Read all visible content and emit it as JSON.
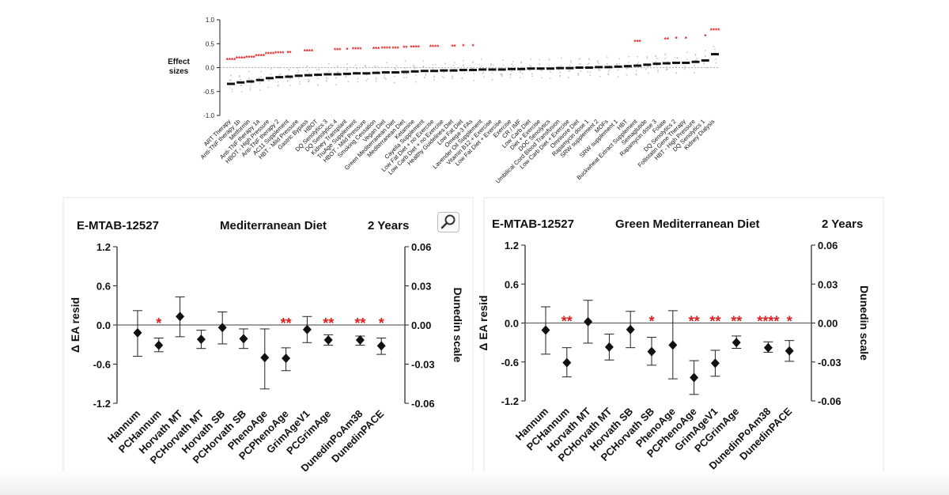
{
  "chart_data": [
    {
      "type": "scatter",
      "title": "",
      "ylabel": "Effect sizes",
      "ylim": [
        -1.0,
        1.0
      ],
      "yticks": [
        "1.0",
        "0.5",
        "0.0",
        "-0.5",
        "-1.0"
      ],
      "categories": [
        "ART Therapy",
        "Anti-TNF therapy 1b",
        "Metformin",
        "Anti-TNF therapy 1a",
        "HBOT - High Pressure",
        "Anti-TNF therapy 2",
        "AC11 Supplement",
        "HBT - Mild Pressure",
        "Gastric Bypass",
        "HBOT",
        "DQ Senolytics 3",
        "DQ Senolytics 4",
        "Kidney Transplant",
        "TruAge Supplement",
        "HBOT - Mild Pressure",
        "Smoking Cessation",
        "Vegan Diet",
        "Green Mediterranean Diet",
        "Mediterranean Diet",
        "Ketamine",
        "Cayella Supplement",
        "Low Fat Diet + no Exercise",
        "Low Carb Diet + no Exercise",
        "Healthy Guidelines Diet",
        "Low Fat Diet",
        "Omega-3 FAs",
        "Lavender Oil Supplement",
        "Vitamin B12 + Exercise",
        "Low Fat Diet + Exercise",
        "Exercise",
        "CR / IMF",
        "Low Carb Diet",
        "Diet + Exercise",
        "DOC Senolytics",
        "Umbilical Cord Blood Transfusion",
        "Low Carb Diet + Exercise",
        "Omnivore Diet",
        "Rapamycin dose 1",
        "SRW supplement 2",
        "MOFs",
        "SRW supplement 1",
        "HBT",
        "Buckwheat Extract Supplement",
        "Semaglutide",
        "Rapamycin dose 3",
        "Folate",
        "DQ Senolytics 2",
        "Follistatin Gene Therapy",
        "HBT - High Pressure",
        "DQ Senolytics 1",
        "Kidney Dialysis"
      ],
      "values": [
        -0.34,
        -0.31,
        -0.29,
        -0.26,
        -0.22,
        -0.2,
        -0.19,
        -0.17,
        -0.16,
        -0.15,
        -0.14,
        -0.14,
        -0.13,
        -0.12,
        -0.12,
        -0.11,
        -0.1,
        -0.1,
        -0.09,
        -0.08,
        -0.07,
        -0.07,
        -0.06,
        -0.06,
        -0.05,
        -0.05,
        -0.04,
        -0.04,
        -0.04,
        -0.03,
        -0.03,
        -0.02,
        -0.02,
        -0.02,
        -0.01,
        -0.01,
        0.0,
        0.0,
        0.01,
        0.01,
        0.02,
        0.03,
        0.04,
        0.06,
        0.08,
        0.09,
        0.1,
        0.1,
        0.12,
        0.15,
        0.28
      ],
      "stars": [
        "****",
        "****",
        "****",
        "****",
        "****",
        "****",
        "**",
        "",
        "****",
        "",
        "",
        "***",
        "*",
        "****",
        "",
        "***",
        "****",
        "***",
        "**",
        "****",
        "",
        "****",
        "",
        "**",
        "*",
        "*",
        "",
        "",
        "",
        "",
        "",
        "",
        "",
        "",
        "",
        "",
        "",
        "",
        "",
        "",
        "",
        "",
        "***",
        "",
        "",
        "**",
        "*",
        "*",
        "",
        "*",
        "****"
      ]
    },
    {
      "type": "scatter",
      "dataset": "E-MTAB-12527",
      "title": "Mediterranean Diet",
      "duration": "2 Years",
      "ylabel": "Δ EA resid",
      "y2label": "Dunedin scale",
      "ylim": [
        -1.2,
        1.2
      ],
      "y2lim": [
        -0.06,
        0.06
      ],
      "yticks": [
        "1.2",
        "0.6",
        "0.0",
        "-0.6",
        "-1.2"
      ],
      "y2ticks": [
        "0.06",
        "0.03",
        "0.00",
        "-0.03",
        "-0.06"
      ],
      "categories": [
        "Hannum",
        "PCHannum",
        "Horvath MT",
        "PCHorvath MT",
        "Horvath SB",
        "PCHorvath SB",
        "PhenoAge",
        "PCPhenoAge",
        "GrimAgeV1",
        "PCGrimAge",
        "DunedinPoAm38",
        "DunedinPACE"
      ],
      "x": [
        0,
        1,
        2,
        3,
        4,
        5,
        6,
        7,
        8,
        9,
        10.5,
        11.5
      ],
      "values": [
        -0.12,
        -0.31,
        0.13,
        -0.22,
        -0.04,
        -0.21,
        -0.5,
        -0.51,
        -0.07,
        -0.23,
        -0.23,
        -0.32
      ],
      "err_low": [
        -0.48,
        -0.41,
        -0.18,
        -0.36,
        -0.29,
        -0.36,
        -0.98,
        -0.7,
        -0.27,
        -0.31,
        -0.31,
        -0.45
      ],
      "err_high": [
        0.22,
        -0.2,
        0.43,
        -0.08,
        0.2,
        -0.06,
        -0.06,
        -0.35,
        0.13,
        -0.15,
        -0.17,
        -0.2
      ],
      "stars": [
        "",
        "*",
        "",
        "",
        "",
        "",
        "",
        "**",
        "",
        "**",
        "**",
        "*"
      ]
    },
    {
      "type": "scatter",
      "dataset": "E-MTAB-12527",
      "title": "Green Mediterranean Diet",
      "duration": "2 Years",
      "ylabel": "Δ EA resid",
      "y2label": "Dunedin scale",
      "ylim": [
        -1.2,
        1.2
      ],
      "y2lim": [
        -0.06,
        0.06
      ],
      "yticks": [
        "1.2",
        "0.6",
        "0.0",
        "-0.6",
        "-1.2"
      ],
      "y2ticks": [
        "0.06",
        "0.03",
        "0.00",
        "-0.03",
        "-0.06"
      ],
      "categories": [
        "Hannum",
        "PCHannum",
        "Horvath MT",
        "PCHorvath MT",
        "Horvath SB",
        "PCHorvath SB",
        "PhenoAge",
        "PCPhenoAge",
        "GrimAgeV1",
        "PCGrimAge",
        "DunedinPoAm38",
        "DunedinPACE"
      ],
      "x": [
        0,
        1,
        2,
        3,
        4,
        5,
        6,
        7,
        8,
        9,
        10.5,
        11.5
      ],
      "values": [
        -0.11,
        -0.61,
        0.02,
        -0.37,
        -0.1,
        -0.44,
        -0.34,
        -0.84,
        -0.62,
        -0.3,
        -0.38,
        -0.43
      ],
      "err_low": [
        -0.48,
        -0.83,
        -0.31,
        -0.57,
        -0.38,
        -0.65,
        -0.86,
        -1.1,
        -0.82,
        -0.39,
        -0.45,
        -0.59
      ],
      "err_high": [
        0.25,
        -0.38,
        0.35,
        -0.17,
        0.18,
        -0.22,
        0.19,
        -0.58,
        -0.42,
        -0.2,
        -0.29,
        -0.27
      ],
      "stars": [
        "",
        "**",
        "",
        "",
        "",
        "*",
        "",
        "**",
        "**",
        "**",
        "****",
        "*"
      ]
    }
  ]
}
